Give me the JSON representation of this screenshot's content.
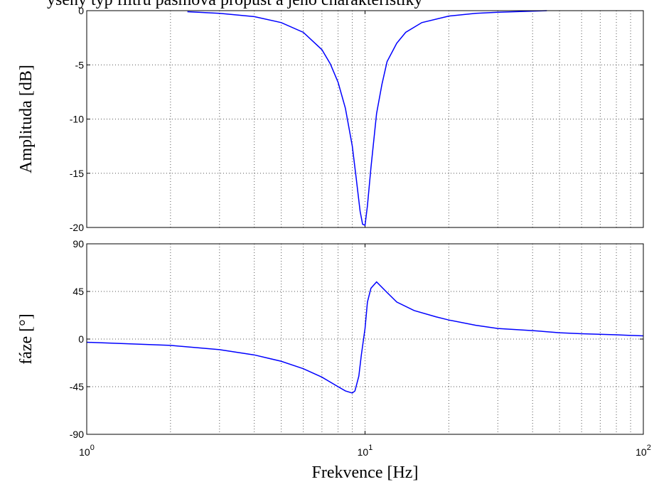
{
  "top_text": "ýšený typ filtru pásmová propust a jeho charakteristiky",
  "chart_data": [
    {
      "type": "line",
      "xlabel": "",
      "ylabel": "Amplituda [dB]",
      "xscale": "log",
      "xlim": [
        1,
        100
      ],
      "ylim": [
        -20,
        0
      ],
      "yticks": [
        0,
        -5,
        -10,
        -15,
        -20
      ],
      "grid": true,
      "series": [
        {
          "color": "#0000ff",
          "x": [
            2.3,
            3.0,
            4.0,
            5.0,
            6.0,
            7.0,
            7.5,
            8.0,
            8.5,
            9.0,
            9.3,
            9.6,
            9.8,
            10.0,
            10.2,
            10.5,
            11.0,
            11.5,
            12.0,
            13.0,
            14.0,
            16.0,
            20.0,
            25.0,
            30.0,
            45.0
          ],
          "y": [
            -0.1,
            -0.25,
            -0.55,
            -1.1,
            -2.0,
            -3.6,
            -4.9,
            -6.6,
            -9.0,
            -12.5,
            -15.5,
            -18.5,
            -19.7,
            -19.8,
            -18.0,
            -14.5,
            -9.5,
            -6.8,
            -4.7,
            -3.0,
            -2.0,
            -1.1,
            -0.5,
            -0.25,
            -0.15,
            0.0
          ]
        }
      ]
    },
    {
      "type": "line",
      "xlabel": "Frekvence [Hz]",
      "ylabel": "fáze [°]",
      "xscale": "log",
      "xlim": [
        1,
        100
      ],
      "ylim": [
        -90,
        90
      ],
      "yticks": [
        90,
        45,
        0,
        -45,
        -90
      ],
      "xticks": [
        {
          "base": "10",
          "exp": "0"
        },
        {
          "base": "10",
          "exp": "1"
        },
        {
          "base": "10",
          "exp": "2"
        }
      ],
      "grid": true,
      "series": [
        {
          "color": "#0000ff",
          "x": [
            1.0,
            2.0,
            3.0,
            4.0,
            5.0,
            6.0,
            7.0,
            8.0,
            8.5,
            9.0,
            9.2,
            9.5,
            9.7,
            10.0,
            10.2,
            10.5,
            11.0,
            12.0,
            13.0,
            15.0,
            18.0,
            20.0,
            25.0,
            30.0,
            40.0,
            50.0,
            60.0,
            80.0,
            100.0
          ],
          "y": [
            -3,
            -6,
            -10,
            -15,
            -21,
            -28,
            -36,
            -45,
            -49,
            -51,
            -49,
            -35,
            -15,
            10,
            35,
            48,
            54,
            44,
            35,
            27,
            21,
            18,
            13,
            10,
            8,
            6,
            5,
            4,
            3
          ]
        }
      ]
    }
  ]
}
